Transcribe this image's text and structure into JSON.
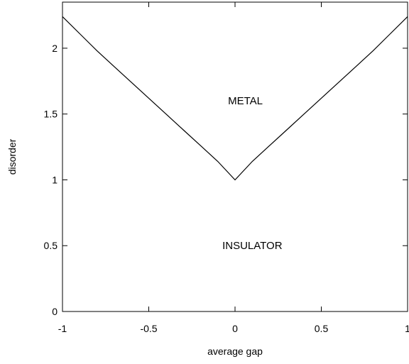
{
  "chart_data": {
    "type": "line",
    "title": "",
    "xlabel": "average gap",
    "ylabel": "disorder",
    "xlim": [
      -1,
      1
    ],
    "ylim": [
      0,
      2.35
    ],
    "grid": false,
    "legend": "none",
    "x_ticks": [
      -1,
      -0.5,
      0,
      0.5,
      1
    ],
    "x_tick_labels": [
      "-1",
      "-0.5",
      "0",
      "0.5",
      "1"
    ],
    "y_ticks": [
      0,
      0.5,
      1,
      1.5,
      2
    ],
    "y_tick_labels": [
      "0",
      "0.5",
      "1",
      "1.5",
      "2"
    ],
    "series": [
      {
        "x": [
          -1.0,
          -0.9,
          -0.8,
          -0.7,
          -0.6,
          -0.5,
          -0.4,
          -0.3,
          -0.2,
          -0.1,
          0.0,
          0.1,
          0.2,
          0.3,
          0.4,
          0.5,
          0.6,
          0.7,
          0.8,
          0.9,
          1.0
        ],
        "y": [
          2.24,
          2.11,
          1.98,
          1.86,
          1.74,
          1.62,
          1.5,
          1.38,
          1.26,
          1.14,
          1.0,
          1.14,
          1.26,
          1.38,
          1.5,
          1.62,
          1.74,
          1.86,
          1.98,
          2.11,
          2.24
        ],
        "color": "#000000"
      }
    ],
    "annotations": [
      {
        "text": "METAL",
        "x": 0.06,
        "y": 1.6
      },
      {
        "text": "INSULATOR",
        "x": 0.1,
        "y": 0.5
      }
    ]
  }
}
